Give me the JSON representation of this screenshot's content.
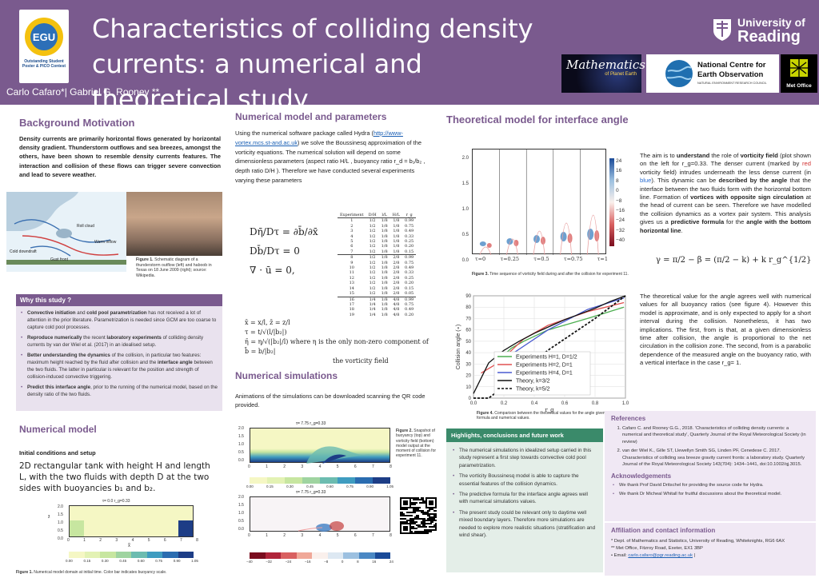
{
  "header": {
    "title": "Characteristics of colliding density currents: a numerical and theoretical study",
    "authors": "Carlo Cafaro*|   Gabriel G. Rooney **",
    "egu_logo_text": "EGU",
    "egu_award": "Outstanding Student Poster & PICO Contest",
    "uor_line1": "University of",
    "uor_line2": "Reading",
    "maths_logo_line1": "Mathematics",
    "maths_logo_line2": "of Planet Earth",
    "nceo_line1": "National Centre for",
    "nceo_line2": "Earth Observation",
    "nceo_line3": "NATURAL ENVIRONMENT RESEARCH COUNCIL",
    "metoffice": "Met Office"
  },
  "background": {
    "title": "Background Motivation",
    "text": "Density currents are primarily horizontal flows generated by horizontal density gradient. Thunderstorm outflows and sea breezes, amongst the others, have been shown to resemble density currents features. The interaction and collision of these flows can trigger severe convection and lead to severe weather.",
    "diagram_labels": [
      "Roll cloud",
      "Warm inflow",
      "Cold downdraft",
      "Gust front"
    ],
    "figure_caption_bold": "Figure 1.",
    "figure_caption": "Schematic diagram of a thunderstorm outflow (left) and haboob in Texas on 18 June 2009 (right); source: Wikipedia."
  },
  "why": {
    "title": "Why this study ?",
    "items": [
      {
        "bold": "Convective initiation",
        "text": " and ",
        "bold2": "cold pool parametrization",
        "text2": " has not received a lot of attention in the prior literature. Parametrization is needed since GCM are too coarse to capture cold pool processes."
      },
      {
        "bold": "Reproduce numerically",
        "text": " the recent ",
        "bold2": "laboratory experiments",
        "text2": " of colliding density currents by van der Wiel et al. (2017) in an idealised setup."
      },
      {
        "bold": "Better understanding the dynamics",
        "text": " of the collision, in particular two features: maximum height reached by the fluid after collision and the ",
        "bold2": "interface angle",
        "text2": " between the two fluids. The latter in particular is relevant for the position and strength of collision-induced convective triggering."
      },
      {
        "bold": "Predict this interface angle",
        "text": ", prior to the running of the numerical model, based on the density ratio of the two fluids.",
        "bold2": "",
        "text2": ""
      }
    ]
  },
  "numerical_model": {
    "title": "Numerical model",
    "subtitle": "Initial conditions and setup",
    "text": "2D rectangular tank with height H and length L, with the two fluids with depth D at the two sides with buoyancies b₁ and b₂.",
    "plot_title": "τ= 0.0 r_g=0.33",
    "ylabel": "z̃",
    "xlabel": "x̃",
    "yticks": [
      "2.0",
      "1.5",
      "1.0",
      "0.5",
      "0.0"
    ],
    "xticks": [
      "0",
      "1",
      "2",
      "3",
      "4",
      "5",
      "6",
      "7",
      "8"
    ],
    "colorbar_ticks": [
      "0.00",
      "0.15",
      "0.30",
      "0.45",
      "0.60",
      "0.75",
      "0.90",
      "1.05"
    ],
    "caption_bold": "Figure 1.",
    "caption": "Numerical model domain at initial time. Color bar indicates buoyancy scale."
  },
  "num_params": {
    "title": "Numerical model and parameters",
    "text1": "Using the numerical software package called Hydra (",
    "link": "http://www-vortex.mcs.st-and.ac.uk",
    "text2": ") we solve the Boussinesq approximation of the vorticity equations. The numerical solution will depend on some dimensionless parameters (aspect ratio H/L , buoyancy ratio r_d = b₁/b₂ , depth ratio D/H ). Therefore we have conducted several experiments varying these parameters",
    "eq1": "Dη̄/Dτ = ∂b̄/∂x̄",
    "eq2": "Db̄/Dτ = 0",
    "eq3": "∇ · ū = 0,",
    "defs": [
      "x̄ = x/l,     z̄ = z/l",
      "τ = t/√(l/|b₂|)",
      "η̄ = η/√(|b₂|/l)   where  η  is the only non-zero component of",
      "b̄ = b/|b₂|",
      "the vorticity field"
    ],
    "table_headers": [
      "Experiment",
      "D/H",
      "l/L",
      "H/L",
      "r_g"
    ],
    "table_rows": [
      [
        "1",
        "1/2",
        "1/8",
        "1/8",
        "0.99"
      ],
      [
        "2",
        "1/2",
        "1/8",
        "1/8",
        "0.75"
      ],
      [
        "3",
        "1/2",
        "1/8",
        "1/8",
        "0.49"
      ],
      [
        "4",
        "1/2",
        "1/8",
        "1/8",
        "0.33"
      ],
      [
        "5",
        "1/2",
        "1/8",
        "1/8",
        "0.25"
      ],
      [
        "6",
        "1/2",
        "1/8",
        "1/8",
        "0.20"
      ],
      [
        "7",
        "1/2",
        "1/8",
        "1/8",
        "0.15"
      ],
      [
        "8",
        "1/2",
        "1/8",
        "2/8",
        "0.99"
      ],
      [
        "9",
        "1/2",
        "1/8",
        "2/8",
        "0.75"
      ],
      [
        "10",
        "1/2",
        "1/8",
        "2/8",
        "0.49"
      ],
      [
        "11",
        "1/2",
        "1/8",
        "2/8",
        "0.33"
      ],
      [
        "12",
        "1/2",
        "1/8",
        "2/8",
        "0.25"
      ],
      [
        "13",
        "1/2",
        "1/8",
        "2/8",
        "0.20"
      ],
      [
        "14",
        "1/2",
        "1/8",
        "2/8",
        "0.15"
      ],
      [
        "15",
        "1/2",
        "1/8",
        "2/8",
        "0.05"
      ],
      [
        "16",
        "1/4",
        "1/8",
        "4/8",
        "0.99"
      ],
      [
        "17",
        "1/4",
        "1/8",
        "4/8",
        "0.75"
      ],
      [
        "18",
        "1/4",
        "1/8",
        "4/8",
        "0.49"
      ],
      [
        "19",
        "1/4",
        "1/8",
        "4/8",
        "0.20"
      ]
    ]
  },
  "simulations": {
    "title": "Numerical simulations",
    "text": "Animations of the simulations can be downloaded scanning the QR code provided.",
    "plot_title": "τ= 7.75 r_g=0.33",
    "xticks": [
      "0",
      "1",
      "2",
      "3",
      "4",
      "5",
      "6",
      "7",
      "8"
    ],
    "yticks": [
      "2.0",
      "1.5",
      "1.0",
      "0.5",
      "0.0"
    ],
    "cbar1_ticks": [
      "0.00",
      "0.15",
      "0.30",
      "0.45",
      "0.60",
      "0.75",
      "0.90",
      "1.05"
    ],
    "cbar2_ticks": [
      "−40",
      "−32",
      "−24",
      "−16",
      "−8",
      "0",
      "8",
      "16",
      "24"
    ],
    "caption_bold": "Figure 2.",
    "caption": "Snapshot of buoyancy (top) and vorticity field (bottom) model output at the moment of collision for experiment 11."
  },
  "theory": {
    "title": "Theoretical model for interface angle",
    "tau_labels": [
      "τ=0",
      "τ=0.25",
      "τ=0.5",
      "τ=0.75",
      "τ=1"
    ],
    "yticks": [
      "2.0",
      "1.5",
      "1.0",
      "0.5",
      "0.0"
    ],
    "cbar_ticks": [
      "24",
      "16",
      "8",
      "0",
      "−8",
      "−16",
      "−24",
      "−32",
      "−40"
    ],
    "fig3_caption_bold": "Figure 3.",
    "fig3_caption": "Time sequence of vorticity field during and after the collision for experiment 11.",
    "para1_a": "The aim is to ",
    "para1_b": "understand",
    "para1_c": " the role of ",
    "para1_d": "vorticity field",
    "para1_e": " (plot shown on the left for r_g=0.33. The denser current (marked by ",
    "para1_red": "red",
    "para1_f": " vorticity field) intrudes underneath the less dense current (in ",
    "para1_blue": "blue",
    "para1_g": "). This dynamic can be ",
    "para1_h": "described by the angle",
    "para1_i": " that the interface between the two fluids form with the horizontal bottom line.",
    "para2_a": "Formation of ",
    "para2_b": "vortices with opposite sign circulation",
    "para2_c": " at the head of current can be seen. Therefore we have modelled the collision dynamics as a vortex pair system. This analysis gives us a ",
    "para2_d": "predictive formula",
    "para2_e": " for the ",
    "para2_f": "angle with the bottom horizontal line",
    "para2_g": ".",
    "formula": "γ = π/2 − β = (π/2 − k) + k r_g^{1/2}",
    "para3": "The theoretical value for the angle agrees well with numerical values for all buoyancy ratios (see figure 4). However this model is approximate, and is only expected to apply for a short interval during the collision. Nonetheless, it has two implications. The first, from is that, at a given dimensionless time after collision, the angle is proportional to the net circulation in the collision zone. The second, from is a parabolic dependence of the measured angle on the buoyancy ratio, with a vertical interface in the case r_g= 1.",
    "fig4_caption_bold": "Figure 4.",
    "fig4_caption": "Comparison between the theoretical values for the angle given by the formula and numerical values."
  },
  "chart_data": {
    "type": "line",
    "xlabel": "r_g",
    "ylabel": "Collision angle (∘)",
    "xlim": [
      0.0,
      1.0
    ],
    "ylim": [
      0,
      90
    ],
    "xticks": [
      "0.0",
      "0.2",
      "0.4",
      "0.6",
      "0.8",
      "1.0"
    ],
    "yticks": [
      "0",
      "10",
      "20",
      "30",
      "40",
      "50",
      "60",
      "70",
      "80",
      "90"
    ],
    "grid": true,
    "legend_position": "lower-right",
    "series": [
      {
        "name": "Experiments H=1, D=1/2",
        "color": "#4caf50",
        "style": "solid",
        "x": [
          0.15,
          0.2,
          0.25,
          0.33,
          0.49,
          0.75,
          0.99
        ],
        "y": [
          32,
          38,
          44,
          50,
          60,
          70,
          80
        ]
      },
      {
        "name": "Experiments H=2, D=1",
        "color": "#e05050",
        "style": "solid",
        "x": [
          0.05,
          0.15,
          0.2,
          0.25,
          0.33,
          0.49,
          0.75,
          0.99
        ],
        "y": [
          22,
          30,
          36,
          42,
          52,
          64,
          76,
          84
        ]
      },
      {
        "name": "Experiments H=4, D=1",
        "color": "#4a5ad0",
        "style": "solid",
        "x": [
          0.2,
          0.49,
          0.75,
          0.99
        ],
        "y": [
          34,
          60,
          78,
          88
        ]
      },
      {
        "name": "Theory, k=3/2",
        "color": "#111111",
        "style": "solid",
        "x": [
          0.0,
          0.1,
          0.2,
          0.3,
          0.4,
          0.5,
          0.6,
          0.7,
          0.8,
          0.9,
          1.0
        ],
        "y": [
          4,
          31,
          42,
          50,
          57,
          63,
          69,
          74,
          79,
          85,
          90
        ]
      },
      {
        "name": "Theory, k=5/2",
        "color": "#111111",
        "style": "dashed",
        "x": [
          0.0,
          0.1,
          0.2,
          0.3,
          0.4,
          0.5,
          0.6,
          0.7,
          0.8,
          0.9,
          1.0
        ],
        "y": [
          0,
          0,
          10,
          22,
          33,
          43,
          52,
          61,
          70,
          80,
          90
        ]
      }
    ]
  },
  "highlights": {
    "title": "Highlights, conclusions and future work",
    "items": [
      "The numerical simulations in idealized setup carried in this study represent a first step towards convective cold pool parametrization.",
      "The vorticity Boussinesq model is able to capture the essential features of the collision dynamics.",
      "The predictive formula for the interface angle agrees well with numerical simulations values.",
      "The present study could be relevant only to daytime well mixed boundary layers. Therefore more simulations are needed to explore more realistic situations (stratification and wind shear)."
    ]
  },
  "references": {
    "title": "References",
    "items": [
      "Cafaro C. and Rooney G.G., 2018. 'Characteristics of colliding density currents: a numerical and theoretical study', Quarterly Journal of the Royal Meteorological Society (in review)",
      "van der Wiel K., Gille ST, Llewellyn Smith SG, Linden PF, Cenedese C. 2017. Characteristics of colliding sea breeze gravity current fronts: a laboratory study. Quarterly Journal of the Royal Meteorological Society 143(704): 1434–1441, doi:10.1002/qj.3015."
    ]
  },
  "acknowledgements": {
    "title": "Acknowledgements",
    "items": [
      "We thank Prof David Dritschel for providing the source code for Hydra.",
      "We thank Dr Micheal Whitall for fruitful discussions about the theoretical model."
    ]
  },
  "affiliation": {
    "title": "Affiliation and contact information",
    "line1": "* Dept. of Mathematics and Statistics, University of Reading, Whiteknights, RG6 6AX",
    "line2": "** Met Office, Fitzroy Road, Exeter, EX1 3BP",
    "email_label": "Email:",
    "email": "carlo.cafaro@pgr.reading.ac.uk"
  }
}
